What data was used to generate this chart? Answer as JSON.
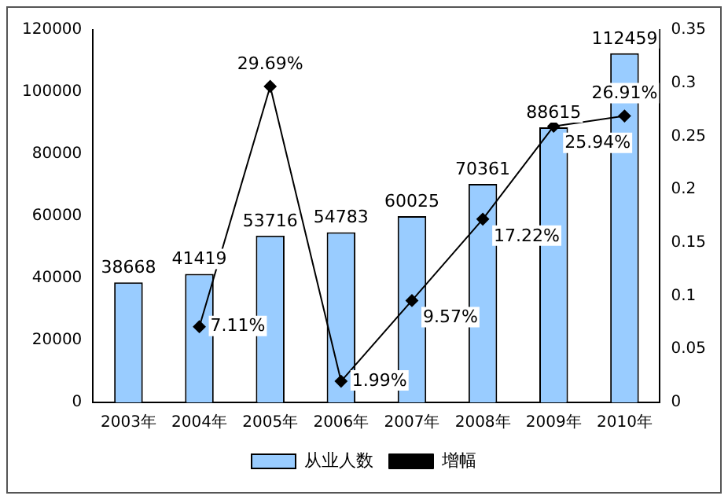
{
  "chart_data": {
    "type": "bar",
    "categories": [
      "2003年",
      "2004年",
      "2005年",
      "2006年",
      "2007年",
      "2008年",
      "2009年",
      "2010年"
    ],
    "series": [
      {
        "name": "从业人数",
        "type": "bar",
        "color": "#99ccff",
        "values": [
          38668,
          41419,
          53716,
          54783,
          60025,
          70361,
          88615,
          112459
        ],
        "value_labels": [
          "38668",
          "41419",
          "53716",
          "54783",
          "60025",
          "70361",
          "88615",
          "112459"
        ]
      },
      {
        "name": "增幅",
        "type": "line",
        "axis": "y2",
        "color": "#000000",
        "marker": "diamond",
        "values": [
          null,
          0.0711,
          0.2969,
          0.0199,
          0.0957,
          0.1722,
          0.2594,
          0.2691
        ],
        "value_labels": [
          null,
          "7.11%",
          "29.69%",
          "1.99%",
          "9.57%",
          "17.22%",
          "25.94%",
          "26.91%"
        ]
      }
    ],
    "ylim": [
      0,
      120000
    ],
    "yticks": [
      0,
      20000,
      40000,
      60000,
      80000,
      100000,
      120000
    ],
    "y2lim": [
      0,
      0.35
    ],
    "y2ticks": [
      0,
      0.05,
      0.1,
      0.15,
      0.2,
      0.25,
      0.3,
      0.35
    ],
    "grid": false,
    "legend": "bottom"
  }
}
